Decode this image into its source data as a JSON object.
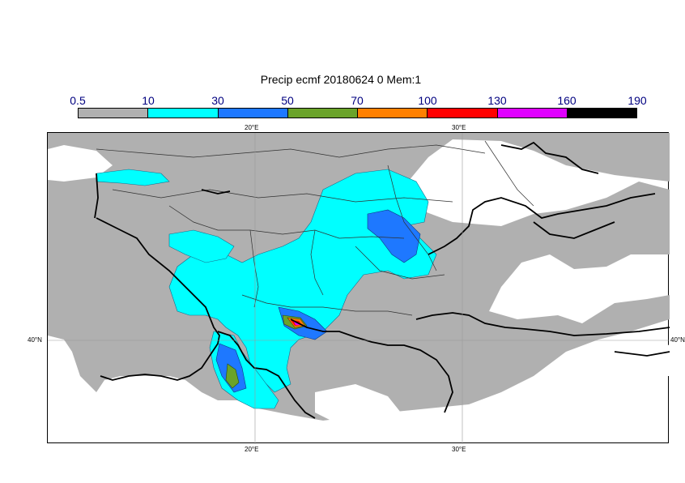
{
  "title": "Precip ecmf 20180624 0 Mem:1",
  "legend": {
    "labels": [
      "0.5",
      "10",
      "30",
      "50",
      "70",
      "100",
      "130",
      "160",
      "190"
    ],
    "colors": [
      "#b0b0b0",
      "#00ffff",
      "#1e78ff",
      "#6aa32a",
      "#ff8000",
      "#ff0000",
      "#e000ff",
      "#000000"
    ]
  },
  "axes": {
    "lon_top": [
      "20°E",
      "30°E"
    ],
    "lon_bottom": [
      "20°E",
      "30°E"
    ],
    "lat_left": "40°N",
    "lat_right": "40°N"
  }
}
